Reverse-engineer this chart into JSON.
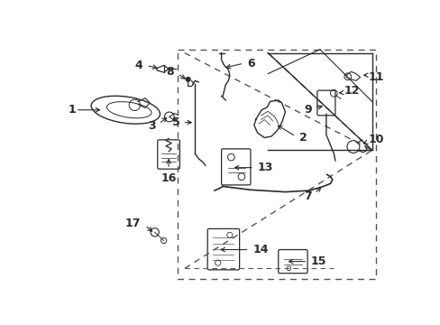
{
  "bg_color": "#ffffff",
  "fig_width": 4.89,
  "fig_height": 3.6,
  "dpi": 100,
  "line_color": "#2a2a2a",
  "dashed_color": "#555555",
  "label_fs": 9
}
